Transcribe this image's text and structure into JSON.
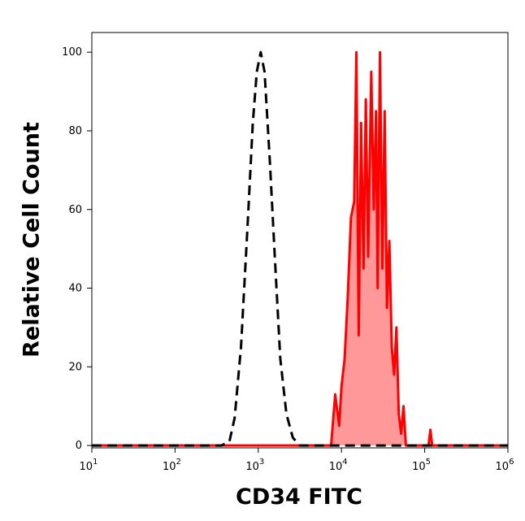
{
  "chart_data": {
    "type": "line",
    "xlabel": "CD34 FITC",
    "ylabel": "Relative Cell Count",
    "xscale": "log",
    "xlim": [
      10,
      1000000
    ],
    "xticks": [
      {
        "value": 10,
        "label": "10",
        "exponent": "1"
      },
      {
        "value": 100,
        "label": "10",
        "exponent": "2"
      },
      {
        "value": 1000,
        "label": "10",
        "exponent": "3"
      },
      {
        "value": 10000,
        "label": "10",
        "exponent": "4"
      },
      {
        "value": 100000,
        "label": "10",
        "exponent": "5"
      },
      {
        "value": 1000000,
        "label": "10",
        "exponent": "6"
      }
    ],
    "ylim": [
      -0.6,
      105
    ],
    "yticks": [
      0,
      20,
      40,
      60,
      80,
      100
    ],
    "series": [
      {
        "color": "#ff0000",
        "fill": "#ff9999",
        "dash": false,
        "x": [
          10,
          7500,
          8400,
          9370,
          10000,
          10900,
          11900,
          13000,
          14200,
          15100,
          16100,
          17200,
          18400,
          19600,
          20900,
          22800,
          24400,
          26000,
          27200,
          29000,
          31000,
          33000,
          35200,
          37600,
          40200,
          42900,
          45700,
          48800,
          52100,
          55600,
          59400,
          111000,
          117000,
          123000,
          1000000
        ],
        "values": [
          0,
          0,
          13,
          5,
          15,
          22,
          38,
          58,
          62,
          100,
          28,
          82,
          45,
          88,
          48,
          95,
          60,
          85,
          40,
          100,
          45,
          85,
          35,
          52,
          25,
          18,
          30,
          8,
          3,
          10,
          0,
          0,
          4,
          0,
          0
        ]
      },
      {
        "color": "#000000",
        "fill": null,
        "dash": true,
        "x": [
          10,
          360,
          450,
          520,
          620,
          740,
          860,
          960,
          1070,
          1190,
          1380,
          1580,
          1840,
          2180,
          2600,
          3160,
          1000000
        ],
        "values": [
          0,
          0,
          1,
          7,
          25,
          55,
          82,
          95,
          100,
          95,
          72,
          48,
          22,
          8,
          2,
          0,
          0
        ]
      }
    ]
  }
}
